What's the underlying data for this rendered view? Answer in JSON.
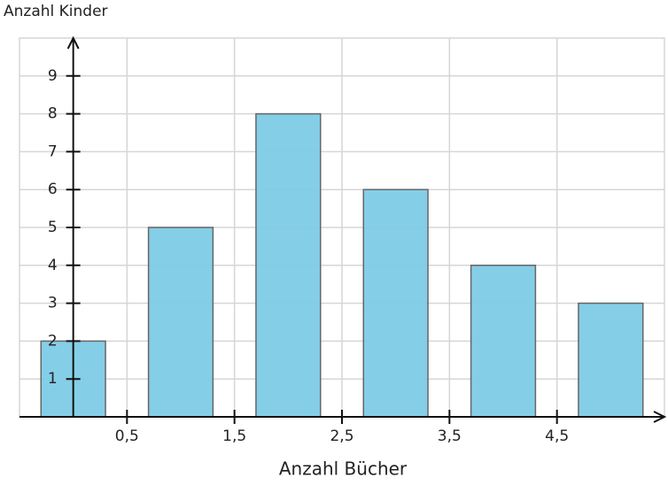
{
  "chart_data": {
    "type": "bar",
    "y_label": "Anzahl Kinder",
    "x_label": "Anzahl Bücher",
    "x": [
      0,
      1,
      2,
      3,
      4,
      5
    ],
    "values": [
      2,
      5,
      8,
      6,
      4,
      3
    ],
    "color": "#7ecbe6",
    "xlim": [
      -0.5,
      5.5
    ],
    "xticks": [
      {
        "value": 0.5,
        "label": "0,5"
      },
      {
        "value": 1.5,
        "label": "1,5"
      },
      {
        "value": 2.5,
        "label": "2,5"
      },
      {
        "value": 3.5,
        "label": "3,5"
      },
      {
        "value": 4.5,
        "label": "4,5"
      }
    ],
    "ylim": [
      0,
      10
    ],
    "yticks": [
      1,
      2,
      3,
      4,
      5,
      6,
      7,
      8,
      9
    ],
    "grid": true
  }
}
